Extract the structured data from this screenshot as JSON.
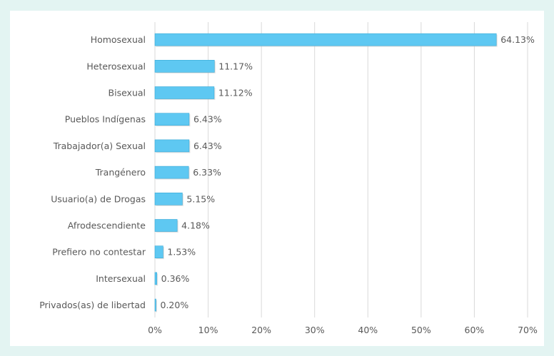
{
  "chart_data": {
    "type": "bar",
    "orientation": "horizontal",
    "categories": [
      "Homosexual",
      "Heterosexual",
      "Bisexual",
      "Pueblos Indígenas",
      "Trabajador(a) Sexual",
      "Trangénero",
      "Usuario(a) de Drogas",
      "Afrodescendiente",
      "Prefiero no contestar",
      "Intersexual",
      "Privados(as) de libertad"
    ],
    "values": [
      64.13,
      11.17,
      11.12,
      6.43,
      6.43,
      6.33,
      5.15,
      4.18,
      1.53,
      0.36,
      0.2
    ],
    "value_labels": [
      "64.13%",
      "11.17%",
      "11.12%",
      "6.43%",
      "6.43%",
      "6.33%",
      "5.15%",
      "4.18%",
      "1.53%",
      "0.36%",
      "0.20%"
    ],
    "xlim": [
      0,
      70
    ],
    "xticks": [
      "0%",
      "10%",
      "20%",
      "30%",
      "40%",
      "50%",
      "60%",
      "70%"
    ],
    "grid": true,
    "title": "",
    "xlabel": "",
    "ylabel": "",
    "colors": {
      "bar": "#5ec8f2",
      "bar_edge": "#3aa9d6",
      "background": "#e3f4f2",
      "text": "#595959",
      "grid": "#d9d9d9"
    }
  }
}
